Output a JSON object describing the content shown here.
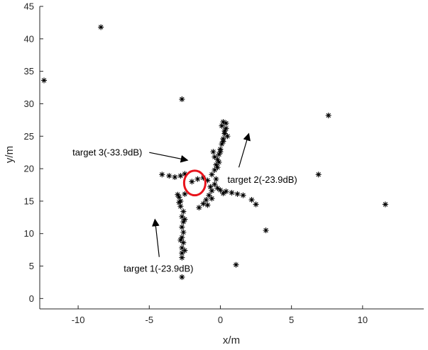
{
  "chart_data": {
    "type": "scatter",
    "title": "",
    "xlabel": "x/m",
    "ylabel": "y/m",
    "xlim": [
      -12.7,
      14.3
    ],
    "ylim": [
      -1.6,
      45
    ],
    "xticks": [
      -10,
      -5,
      0,
      5,
      10
    ],
    "yticks": [
      0,
      5,
      10,
      15,
      20,
      25,
      30,
      35,
      40,
      45
    ],
    "grid": false,
    "legend": "none",
    "colors": {
      "points": "#000000",
      "circle": "#e8141c",
      "axes": "#262626"
    },
    "series": [
      {
        "marker": "asterisk",
        "points": [
          [
            -12.4,
            33.6
          ],
          [
            -8.4,
            41.8
          ],
          [
            -2.7,
            30.7
          ],
          [
            7.6,
            28.2
          ],
          [
            11.6,
            14.5
          ],
          [
            3.2,
            10.5
          ],
          [
            1.1,
            5.2
          ],
          [
            -2.7,
            3.3
          ],
          [
            6.9,
            19.1
          ],
          [
            -4.1,
            19.1
          ],
          [
            -2.7,
            6.3
          ],
          [
            -2.7,
            7.0
          ],
          [
            -2.7,
            7.8
          ],
          [
            -2.6,
            8.6
          ],
          [
            -2.7,
            9.4
          ],
          [
            -2.6,
            10.2
          ],
          [
            -2.7,
            11.0
          ],
          [
            -2.6,
            11.8
          ],
          [
            -2.7,
            12.6
          ],
          [
            -2.6,
            13.4
          ],
          [
            -2.8,
            14.2
          ],
          [
            -2.8,
            15.0
          ],
          [
            -2.9,
            15.6
          ],
          [
            -3.0,
            16.0
          ],
          [
            -2.5,
            16.1
          ],
          [
            -2.9,
            14.8
          ],
          [
            -2.5,
            12.2
          ],
          [
            -2.8,
            9.0
          ],
          [
            -2.5,
            7.4
          ],
          [
            -3.6,
            18.9
          ],
          [
            -3.2,
            18.7
          ],
          [
            -2.8,
            18.9
          ],
          [
            -2.5,
            19.2
          ],
          [
            -2.0,
            18.0
          ],
          [
            -1.6,
            18.4
          ],
          [
            -1.2,
            18.6
          ],
          [
            -0.9,
            18.2
          ],
          [
            -0.6,
            19.1
          ],
          [
            -0.4,
            17.6
          ],
          [
            -0.6,
            16.6
          ],
          [
            -0.8,
            15.9
          ],
          [
            -1.0,
            15.2
          ],
          [
            -1.2,
            14.6
          ],
          [
            -1.5,
            14.0
          ],
          [
            -0.9,
            14.4
          ],
          [
            -0.6,
            15.4
          ],
          [
            -0.4,
            19.8
          ],
          [
            -0.3,
            20.6
          ],
          [
            -0.2,
            21.4
          ],
          [
            -0.1,
            22.2
          ],
          [
            0.0,
            23.0
          ],
          [
            0.1,
            23.8
          ],
          [
            0.2,
            24.6
          ],
          [
            0.3,
            25.4
          ],
          [
            0.4,
            26.2
          ],
          [
            0.4,
            27.0
          ],
          [
            -0.1,
            21.0
          ],
          [
            0.0,
            22.6
          ],
          [
            0.2,
            24.2
          ],
          [
            0.3,
            25.8
          ],
          [
            -0.2,
            20.2
          ],
          [
            0.1,
            26.6
          ],
          [
            -0.5,
            22.6
          ],
          [
            -0.4,
            21.8
          ],
          [
            0.5,
            25.0
          ],
          [
            0.2,
            27.2
          ],
          [
            0.0,
            16.7
          ],
          [
            0.4,
            16.5
          ],
          [
            0.8,
            16.3
          ],
          [
            1.2,
            16.1
          ],
          [
            1.6,
            15.9
          ],
          [
            2.2,
            15.2
          ],
          [
            2.5,
            14.5
          ],
          [
            0.2,
            16.2
          ],
          [
            -0.3,
            18.4
          ],
          [
            -0.7,
            17.2
          ],
          [
            -0.2,
            17.0
          ]
        ]
      }
    ],
    "highlight_circle": {
      "center": [
        -1.8,
        17.8
      ],
      "radius_x": 0.75,
      "radius_y": 1.9
    },
    "annotations": [
      {
        "text": "target 1(-23.9dB)",
        "anchor": [
          -6.8,
          4.6
        ],
        "arrow_from": [
          -4.3,
          6.4
        ],
        "arrow_to": [
          -4.6,
          12.2
        ]
      },
      {
        "text": "target 2(-23.9dB)",
        "anchor": [
          0.5,
          18.3
        ],
        "arrow_from": [
          1.3,
          20.2
        ],
        "arrow_to": [
          2.0,
          25.4
        ]
      },
      {
        "text": "target 3(-33.9dB)",
        "anchor": [
          -10.4,
          22.5
        ],
        "arrow_from": [
          -5.0,
          22.5
        ],
        "arrow_to": [
          -2.3,
          21.3
        ]
      }
    ]
  }
}
